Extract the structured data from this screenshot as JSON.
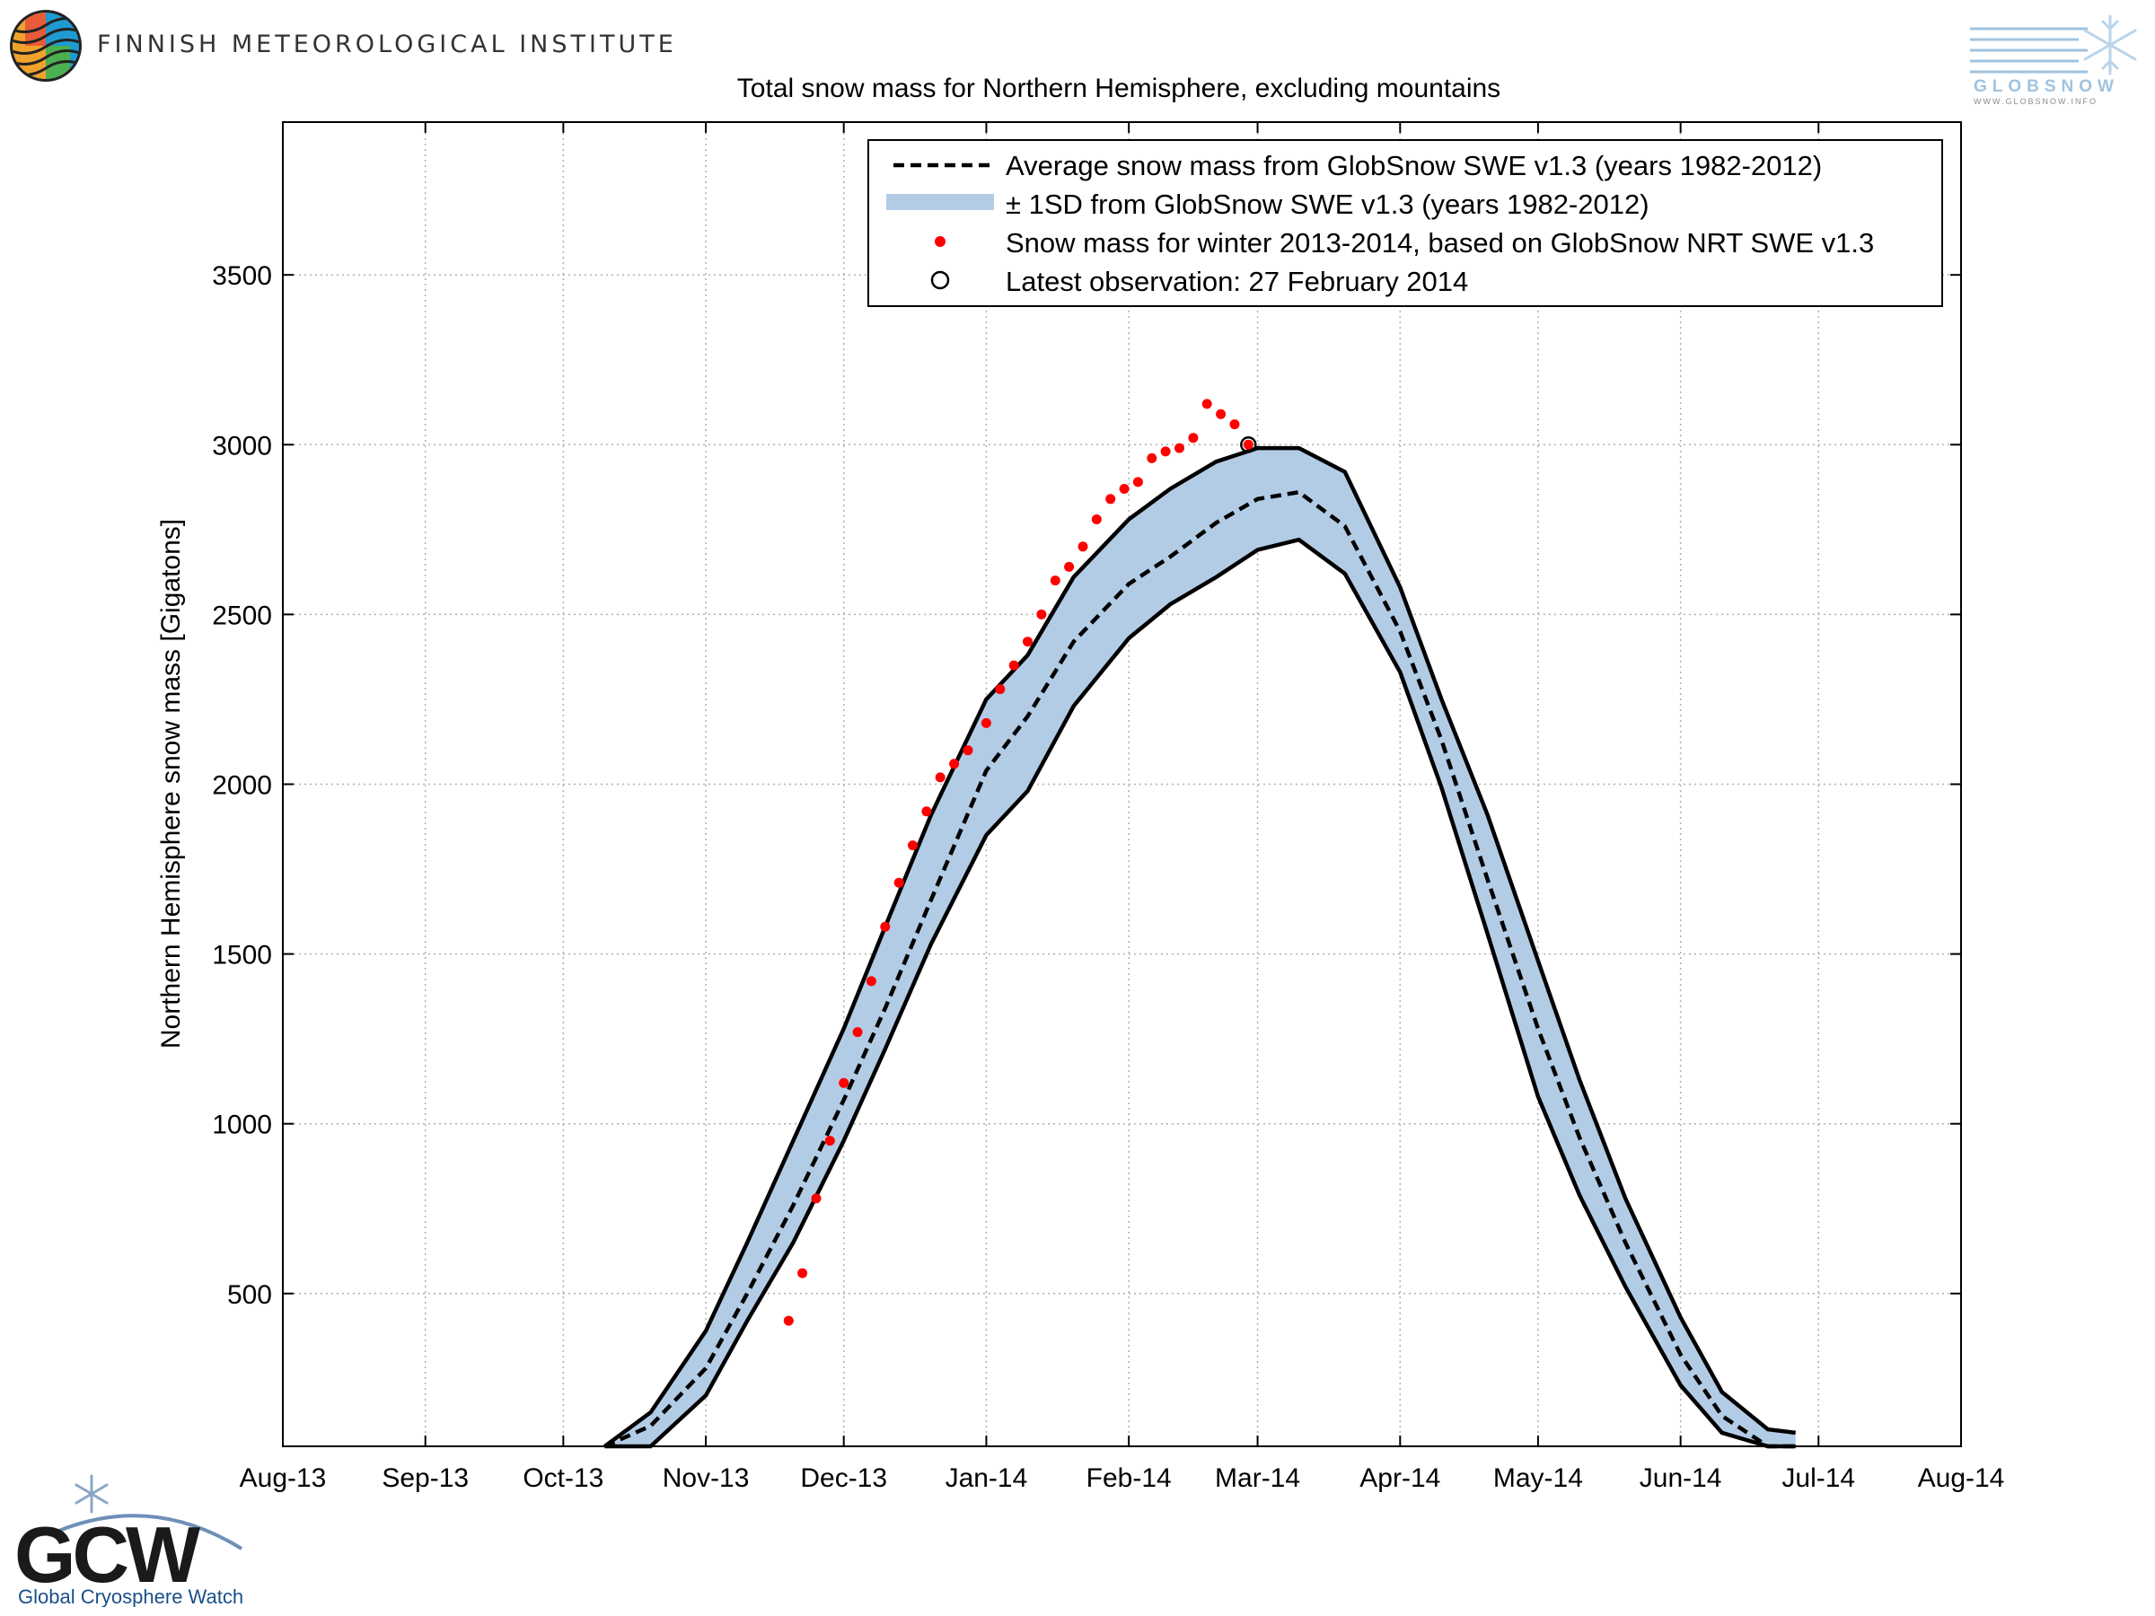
{
  "header": {
    "fmi_name": "FINNISH METEOROLOGICAL INSTITUTE",
    "globsnow_text": "GLOBSNOW",
    "globsnow_url": "WWW.GLOBSNOW.INFO"
  },
  "footer": {
    "gcw_letters": "GCW",
    "gcw_name": "Global Cryosphere Watch"
  },
  "colors": {
    "band": "#b3cce6",
    "observed": "#ff0000",
    "line": "#000000"
  },
  "chart_data": {
    "type": "line",
    "title": "Total snow mass for Northern Hemisphere, excluding mountains",
    "ylabel": "Northern Hemisphere snow mass [Gigatons]",
    "xlabel": "",
    "x_range": [
      "2013-08-01",
      "2014-08-01"
    ],
    "ylim": [
      50,
      3950
    ],
    "x_ticks": [
      "Aug-13",
      "Sep-13",
      "Oct-13",
      "Nov-13",
      "Dec-13",
      "Jan-14",
      "Feb-14",
      "Mar-14",
      "Apr-14",
      "May-14",
      "Jun-14",
      "Jul-14",
      "Aug-14"
    ],
    "x_tick_dates": [
      "2013-08-01",
      "2013-09-01",
      "2013-10-01",
      "2013-11-01",
      "2013-12-01",
      "2014-01-01",
      "2014-02-01",
      "2014-03-01",
      "2014-04-01",
      "2014-05-01",
      "2014-06-01",
      "2014-07-01",
      "2014-08-01"
    ],
    "y_ticks": [
      500,
      1000,
      1500,
      2000,
      2500,
      3000,
      3500
    ],
    "grid": true,
    "legend_position": "top-right",
    "legend": [
      {
        "label": "Average snow mass from GlobSnow SWE v1.3 (years 1982-2012)",
        "style": "dashed-line"
      },
      {
        "label": "± 1SD from GlobSnow SWE v1.3 (years 1982-2012)",
        "style": "band"
      },
      {
        "label": "Snow mass for winter 2013-2014, based on GlobSnow NRT SWE v1.3",
        "style": "red-dots"
      },
      {
        "label": "Latest observation: 27 February 2014",
        "style": "open-circle"
      }
    ],
    "series": [
      {
        "name": "Average snow mass from GlobSnow SWE v1.3 (years 1982-2012)",
        "x": [
          "2013-10-10",
          "2013-10-20",
          "2013-11-01",
          "2013-11-10",
          "2013-11-20",
          "2013-12-01",
          "2013-12-10",
          "2013-12-20",
          "2014-01-01",
          "2014-01-10",
          "2014-01-20",
          "2014-02-01",
          "2014-02-10",
          "2014-02-20",
          "2014-03-01",
          "2014-03-10",
          "2014-03-20",
          "2014-04-01",
          "2014-04-10",
          "2014-04-20",
          "2014-05-01",
          "2014-05-10",
          "2014-05-20",
          "2014-06-01",
          "2014-06-10",
          "2014-06-20",
          "2014-06-26"
        ],
        "mean": [
          0,
          110,
          280,
          500,
          760,
          1070,
          1340,
          1660,
          2040,
          2200,
          2420,
          2590,
          2670,
          2770,
          2840,
          2860,
          2760,
          2450,
          2130,
          1720,
          1280,
          960,
          650,
          320,
          140,
          50,
          20
        ],
        "lower": [
          0,
          50,
          200,
          420,
          650,
          950,
          1220,
          1530,
          1850,
          1980,
          2230,
          2430,
          2530,
          2610,
          2690,
          2720,
          2620,
          2330,
          1990,
          1560,
          1080,
          790,
          520,
          230,
          90,
          30,
          0
        ],
        "upper": [
          20,
          150,
          390,
          650,
          950,
          1280,
          1580,
          1910,
          2250,
          2380,
          2610,
          2780,
          2870,
          2950,
          2990,
          2990,
          2920,
          2580,
          2250,
          1910,
          1480,
          1130,
          780,
          430,
          210,
          100,
          90
        ]
      },
      {
        "name": "Snow mass for winter 2013-2014, based on GlobSnow NRT SWE v1.3",
        "x": [
          "2013-11-19",
          "2013-11-22",
          "2013-11-25",
          "2013-11-28",
          "2013-12-01",
          "2013-12-04",
          "2013-12-07",
          "2013-12-10",
          "2013-12-13",
          "2013-12-16",
          "2013-12-19",
          "2013-12-22",
          "2013-12-25",
          "2013-12-28",
          "2014-01-01",
          "2014-01-04",
          "2014-01-07",
          "2014-01-10",
          "2014-01-13",
          "2014-01-16",
          "2014-01-19",
          "2014-01-22",
          "2014-01-25",
          "2014-01-28",
          "2014-01-31",
          "2014-02-03",
          "2014-02-06",
          "2014-02-09",
          "2014-02-12",
          "2014-02-15",
          "2014-02-18",
          "2014-02-21",
          "2014-02-24",
          "2014-02-27"
        ],
        "values": [
          420,
          560,
          780,
          950,
          1120,
          1270,
          1420,
          1580,
          1710,
          1820,
          1920,
          2020,
          2060,
          2100,
          2180,
          2280,
          2350,
          2420,
          2500,
          2600,
          2640,
          2700,
          2780,
          2840,
          2870,
          2890,
          2960,
          2980,
          2990,
          3020,
          3120,
          3090,
          3060,
          3000
        ]
      }
    ]
  }
}
